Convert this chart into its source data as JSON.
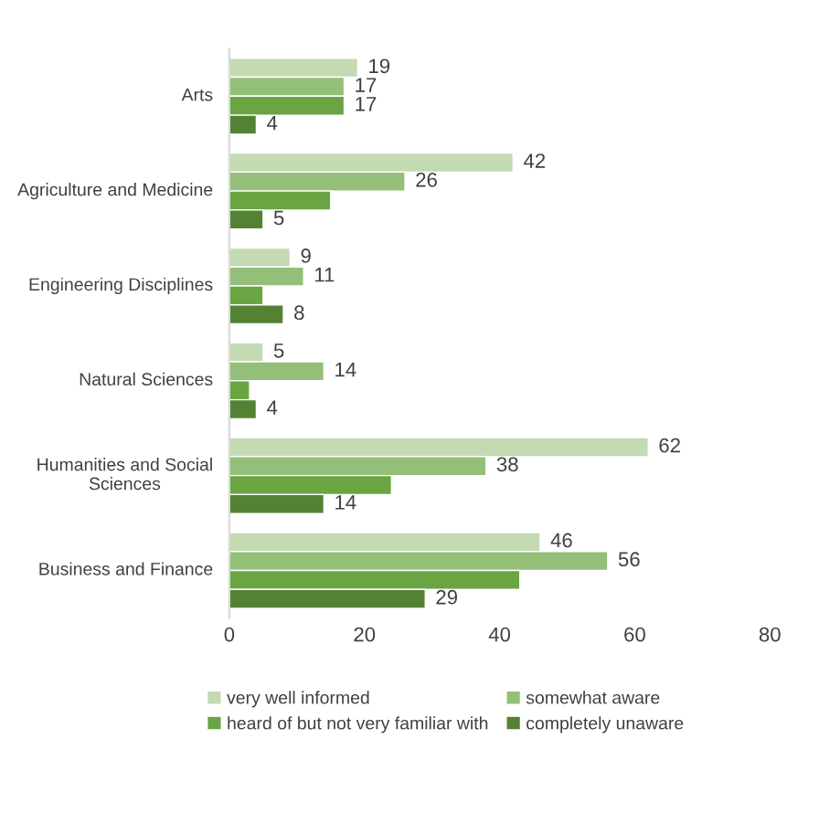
{
  "chart_data": {
    "type": "bar",
    "orientation": "horizontal",
    "categories": [
      "Arts",
      "Agriculture and Medicine",
      "Engineering Disciplines",
      "Natural Sciences",
      "Humanities and Social Sciences",
      "Business and Finance"
    ],
    "series": [
      {
        "name": "very well informed",
        "color": "#c3dab3",
        "values": [
          19,
          42,
          9,
          5,
          62,
          46
        ],
        "value_labels": [
          "19",
          "42",
          "9",
          "5",
          "62",
          "46"
        ]
      },
      {
        "name": "somewhat aware",
        "color": "#93bf79",
        "values": [
          17,
          26,
          11,
          14,
          38,
          56
        ],
        "value_labels": [
          "17",
          "26",
          "11",
          "14",
          "38",
          "56"
        ]
      },
      {
        "name": "heard of but not very familiar with",
        "color": "#6aa443",
        "values": [
          17,
          15,
          5,
          3,
          24,
          43
        ],
        "value_labels": [
          "17",
          null,
          null,
          null,
          null,
          null
        ]
      },
      {
        "name": "completely unaware",
        "color": "#548235",
        "values": [
          4,
          5,
          8,
          4,
          14,
          29
        ],
        "value_labels": [
          "4",
          "5",
          "8",
          "4",
          "14",
          "29"
        ]
      }
    ],
    "xlim": [
      0,
      80
    ],
    "xticks": [
      0,
      20,
      40,
      60,
      80
    ],
    "grid": false,
    "legend": "bottom"
  }
}
